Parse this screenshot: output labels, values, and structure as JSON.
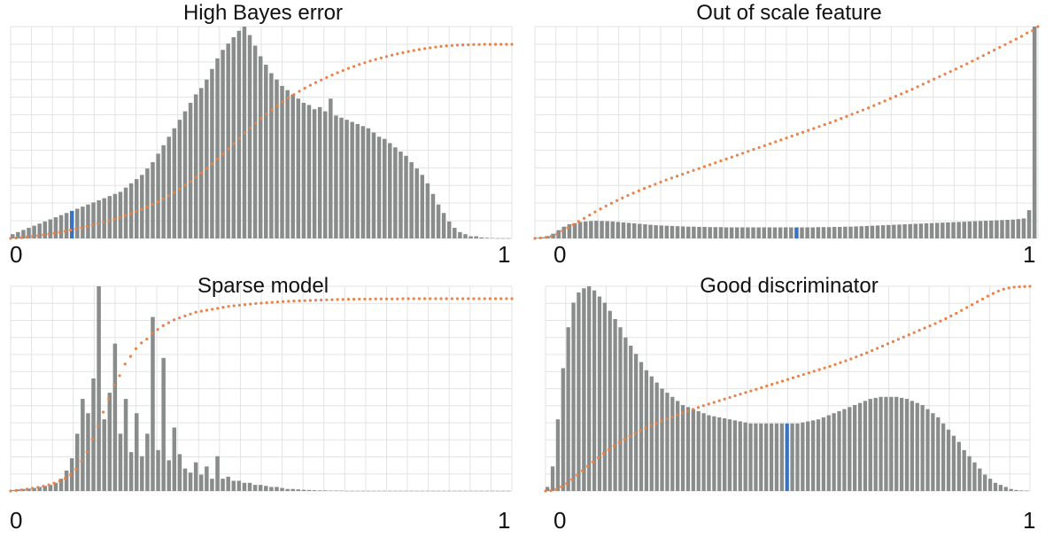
{
  "colors": {
    "bar": "#888c8a",
    "highlight": "#3a72c4",
    "cdf": "#e8834a",
    "grid": "#e3e3e3"
  },
  "chart_data": [
    {
      "type": "bar",
      "title": "High Bayes error",
      "x_range": [
        0,
        1
      ],
      "xtick_labels": [
        "0",
        "1"
      ],
      "grid": true,
      "highlight_bin": 11,
      "values": [
        2,
        3,
        4,
        5,
        6,
        7,
        8,
        9,
        10,
        11,
        12,
        13,
        14,
        15,
        16,
        17,
        18,
        19,
        20,
        21,
        22,
        24,
        26,
        28,
        30,
        33,
        36,
        40,
        44,
        48,
        52,
        56,
        60,
        64,
        68,
        71,
        75,
        80,
        85,
        89,
        92,
        95,
        98,
        100,
        96,
        91,
        86,
        82,
        78,
        75,
        72,
        70,
        68,
        66,
        64,
        63,
        61,
        62,
        60,
        66,
        58,
        57,
        56,
        55,
        54,
        53,
        52,
        50,
        48,
        47,
        45,
        43,
        41,
        39,
        36,
        33,
        30,
        26,
        21,
        16,
        12,
        8,
        5,
        3,
        2,
        1,
        1,
        0.5,
        0.3,
        0.2,
        0.1,
        0.1,
        0.1
      ],
      "cdf": [
        0,
        0.002,
        0.004,
        0.007,
        0.01,
        0.014,
        0.018,
        0.022,
        0.027,
        0.032,
        0.037,
        0.043,
        0.049,
        0.055,
        0.062,
        0.069,
        0.076,
        0.084,
        0.092,
        0.1,
        0.109,
        0.118,
        0.128,
        0.139,
        0.15,
        0.162,
        0.175,
        0.189,
        0.204,
        0.22,
        0.237,
        0.255,
        0.274,
        0.294,
        0.315,
        0.337,
        0.36,
        0.384,
        0.409,
        0.435,
        0.462,
        0.489,
        0.516,
        0.543,
        0.569,
        0.594,
        0.618,
        0.641,
        0.663,
        0.684,
        0.704,
        0.723,
        0.741,
        0.758,
        0.774,
        0.789,
        0.803,
        0.816,
        0.829,
        0.842,
        0.854,
        0.865,
        0.876,
        0.886,
        0.896,
        0.905,
        0.914,
        0.922,
        0.93,
        0.937,
        0.944,
        0.951,
        0.957,
        0.963,
        0.968,
        0.973,
        0.978,
        0.982,
        0.986,
        0.989,
        0.992,
        0.994,
        0.996,
        0.997,
        0.998,
        0.999,
        0.999,
        1,
        1,
        1,
        1,
        1,
        1
      ]
    },
    {
      "type": "bar",
      "title": "Out of scale feature",
      "x_range": [
        0,
        1
      ],
      "xtick_labels": [
        "0",
        "1"
      ],
      "grid": true,
      "highlight_bin": 48,
      "values": [
        0.3,
        0.5,
        1,
        2,
        3.5,
        5,
        6,
        6.5,
        7,
        7.2,
        7.4,
        7.5,
        7.4,
        7.3,
        7.2,
        7,
        6.8,
        6.6,
        6.4,
        6.2,
        6,
        5.8,
        5.6,
        5.5,
        5.4,
        5.3,
        5.2,
        5.1,
        5,
        5,
        4.9,
        4.9,
        4.8,
        4.8,
        4.8,
        4.7,
        4.7,
        4.7,
        4.7,
        4.7,
        4.7,
        4.7,
        4.7,
        4.7,
        4.7,
        4.7,
        4.7,
        4.7,
        4.7,
        4.7,
        4.7,
        4.7,
        4.8,
        4.8,
        4.8,
        4.9,
        4.9,
        5,
        5,
        5.1,
        5.2,
        5.3,
        5.4,
        5.5,
        5.6,
        5.7,
        5.8,
        5.9,
        6,
        6.1,
        6.2,
        6.3,
        6.4,
        6.5,
        6.6,
        6.7,
        6.8,
        6.9,
        7,
        7.1,
        7.2,
        7.3,
        7.4,
        7.5,
        7.6,
        7.7,
        7.8,
        7.9,
        8,
        8.2,
        8.5,
        12,
        90
      ],
      "cdf": [
        0,
        0.002,
        0.005,
        0.01,
        0.02,
        0.035,
        0.05,
        0.065,
        0.08,
        0.095,
        0.11,
        0.125,
        0.139,
        0.153,
        0.166,
        0.179,
        0.191,
        0.203,
        0.214,
        0.225,
        0.236,
        0.246,
        0.256,
        0.266,
        0.276,
        0.285,
        0.294,
        0.303,
        0.312,
        0.321,
        0.33,
        0.339,
        0.348,
        0.357,
        0.366,
        0.375,
        0.384,
        0.393,
        0.402,
        0.411,
        0.42,
        0.429,
        0.438,
        0.447,
        0.456,
        0.465,
        0.474,
        0.483,
        0.492,
        0.501,
        0.51,
        0.519,
        0.528,
        0.537,
        0.546,
        0.556,
        0.566,
        0.576,
        0.586,
        0.596,
        0.606,
        0.616,
        0.627,
        0.638,
        0.649,
        0.66,
        0.671,
        0.682,
        0.693,
        0.704,
        0.716,
        0.728,
        0.74,
        0.752,
        0.764,
        0.776,
        0.788,
        0.8,
        0.812,
        0.824,
        0.837,
        0.85,
        0.863,
        0.876,
        0.889,
        0.902,
        0.915,
        0.928,
        0.941,
        0.954,
        0.97,
        0.98,
        1
      ]
    },
    {
      "type": "bar",
      "title": "Sparse model",
      "x_range": [
        0,
        1
      ],
      "xtick_labels": [
        "0",
        "1"
      ],
      "grid": true,
      "values": [
        0.5,
        0.8,
        1,
        1.2,
        1.5,
        2,
        2.5,
        3,
        4,
        6,
        10,
        16,
        28,
        45,
        38,
        55,
        100,
        35,
        48,
        72,
        28,
        45,
        19,
        38,
        17,
        28,
        85,
        20,
        65,
        15,
        31,
        18,
        11,
        9,
        14,
        8,
        12,
        6,
        17,
        6,
        7,
        5,
        5,
        4,
        4,
        3,
        3,
        2.5,
        2,
        2,
        1.5,
        1,
        1,
        0.8,
        0.6,
        0.5,
        0.4,
        0.3,
        0.3,
        0.2,
        0.2,
        0.2,
        0.1,
        0.1,
        0.1,
        0.1,
        0.1,
        0.1,
        0.1,
        0.1,
        0.1,
        0.1,
        0.1,
        0.1,
        0.1,
        0.1,
        0.1,
        0.1,
        0.1,
        0.1,
        0.1,
        0.1,
        0.1,
        0.1,
        0.1,
        0.1,
        0.1,
        0.1,
        0.1,
        0.1,
        0.1,
        0.1,
        0.1
      ],
      "cdf": [
        0,
        0.003,
        0.006,
        0.01,
        0.014,
        0.019,
        0.025,
        0.032,
        0.041,
        0.052,
        0.066,
        0.085,
        0.113,
        0.155,
        0.203,
        0.27,
        0.34,
        0.41,
        0.48,
        0.55,
        0.6,
        0.66,
        0.7,
        0.74,
        0.77,
        0.79,
        0.82,
        0.84,
        0.86,
        0.875,
        0.89,
        0.9,
        0.91,
        0.92,
        0.93,
        0.935,
        0.94,
        0.945,
        0.95,
        0.955,
        0.96,
        0.963,
        0.966,
        0.969,
        0.972,
        0.975,
        0.977,
        0.979,
        0.981,
        0.983,
        0.985,
        0.987,
        0.988,
        0.989,
        0.99,
        0.991,
        0.992,
        0.993,
        0.994,
        0.995,
        0.996,
        0.996,
        0.997,
        0.997,
        0.998,
        0.998,
        0.998,
        0.999,
        0.999,
        0.999,
        0.999,
        0.999,
        1,
        1,
        1,
        1,
        1,
        1,
        1,
        1,
        1,
        1,
        1,
        1,
        1,
        1,
        1,
        1,
        1,
        1,
        1,
        1,
        1
      ]
    },
    {
      "type": "bar",
      "title": "Good discriminator",
      "x_range": [
        0,
        1
      ],
      "xtick_labels": [
        "0",
        "1"
      ],
      "grid": true,
      "highlight_bin": 46,
      "values": [
        2,
        12,
        35,
        60,
        80,
        92,
        97,
        99,
        100,
        98,
        95,
        92,
        88,
        84,
        80,
        75,
        71,
        67,
        63,
        59,
        56,
        53,
        50,
        48,
        46,
        44,
        42,
        41,
        40,
        39,
        38,
        37,
        36.5,
        36,
        35.5,
        35,
        34.5,
        34,
        33.5,
        33,
        33,
        33,
        33,
        33,
        33,
        33,
        33,
        33,
        33,
        33.5,
        34,
        34.5,
        35,
        36,
        37,
        38,
        39,
        40,
        41,
        42,
        43,
        44,
        45,
        45.5,
        46,
        46,
        46,
        46,
        45.5,
        45,
        44,
        43,
        42,
        40,
        38,
        36,
        33,
        30,
        27,
        24,
        20,
        17,
        14,
        11,
        8,
        6,
        4,
        3,
        2,
        1,
        0.5,
        0.3,
        0.2
      ],
      "cdf": [
        0,
        0.002,
        0.008,
        0.02,
        0.036,
        0.056,
        0.077,
        0.099,
        0.121,
        0.142,
        0.163,
        0.183,
        0.202,
        0.22,
        0.237,
        0.253,
        0.268,
        0.282,
        0.295,
        0.308,
        0.32,
        0.331,
        0.342,
        0.352,
        0.362,
        0.372,
        0.381,
        0.39,
        0.399,
        0.408,
        0.417,
        0.425,
        0.433,
        0.441,
        0.449,
        0.457,
        0.465,
        0.473,
        0.481,
        0.489,
        0.497,
        0.505,
        0.513,
        0.521,
        0.529,
        0.537,
        0.545,
        0.553,
        0.561,
        0.569,
        0.577,
        0.585,
        0.593,
        0.601,
        0.609,
        0.618,
        0.627,
        0.636,
        0.645,
        0.655,
        0.665,
        0.675,
        0.686,
        0.697,
        0.708,
        0.719,
        0.73,
        0.741,
        0.752,
        0.763,
        0.774,
        0.785,
        0.796,
        0.807,
        0.818,
        0.83,
        0.842,
        0.855,
        0.868,
        0.882,
        0.896,
        0.91,
        0.924,
        0.938,
        0.952,
        0.965,
        0.977,
        0.986,
        0.992,
        0.996,
        0.998,
        0.999,
        1
      ]
    }
  ]
}
